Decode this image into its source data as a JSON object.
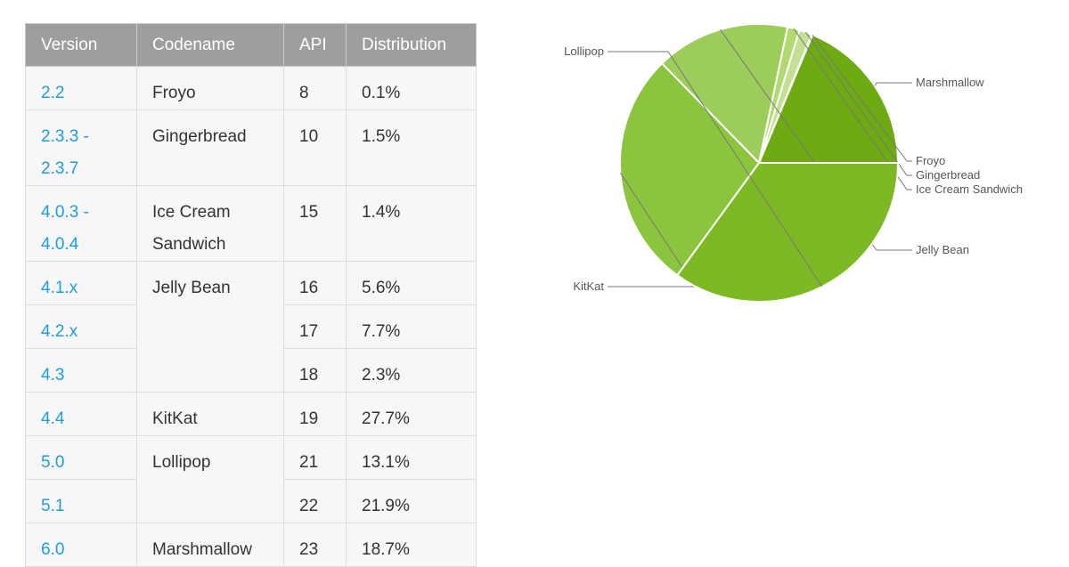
{
  "table": {
    "headers": [
      "Version",
      "Codename",
      "API",
      "Distribution"
    ],
    "rows": [
      {
        "version": "2.2",
        "codename": "Froyo",
        "api": "8",
        "dist": "0.1%"
      },
      {
        "version": "2.3.3 -\n2.3.7",
        "codename": "Gingerbread",
        "api": "10",
        "dist": "1.5%"
      },
      {
        "version": "4.0.3 -\n4.0.4",
        "codename": "Ice Cream\nSandwich",
        "api": "15",
        "dist": "1.4%"
      },
      {
        "version": "4.1.x",
        "codename": "Jelly Bean",
        "api": "16",
        "dist": "5.6%"
      },
      {
        "version": "4.2.x",
        "codename": "",
        "api": "17",
        "dist": "7.7%"
      },
      {
        "version": "4.3",
        "codename": "",
        "api": "18",
        "dist": "2.3%"
      },
      {
        "version": "4.4",
        "codename": "KitKat",
        "api": "19",
        "dist": "27.7%"
      },
      {
        "version": "5.0",
        "codename": "Lollipop",
        "api": "21",
        "dist": "13.1%"
      },
      {
        "version": "5.1",
        "codename": "",
        "api": "22",
        "dist": "21.9%"
      },
      {
        "version": "6.0",
        "codename": "Marshmallow",
        "api": "23",
        "dist": "18.7%"
      }
    ]
  },
  "chart_data": {
    "type": "pie",
    "categories": [
      "Marshmallow",
      "Froyo",
      "Gingerbread",
      "Ice Cream Sandwich",
      "Jelly Bean",
      "KitKat",
      "Lollipop"
    ],
    "values": [
      18.7,
      0.1,
      1.5,
      1.4,
      15.6,
      27.7,
      35.0
    ],
    "colors": [
      "#6eaa12",
      "#d5eab2",
      "#c2e192",
      "#b2d970",
      "#9ccc5a",
      "#8bc43d",
      "#7cb924"
    ],
    "legend": "labels beside slices",
    "start": "3 o'clock, counter-clockwise"
  }
}
